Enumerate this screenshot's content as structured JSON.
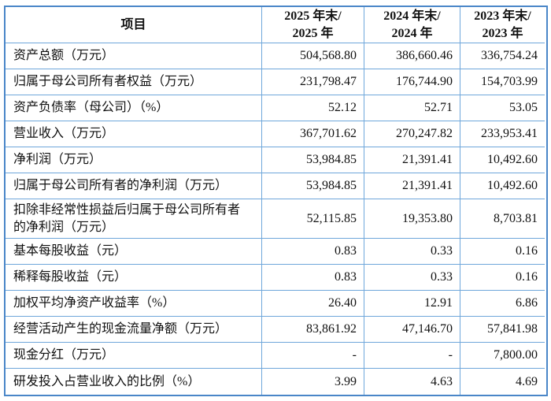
{
  "table": {
    "title_semantic": "financial-summary-table",
    "border_color_outer": "#4a86c8",
    "border_color_inner": "#6fa7db",
    "header": {
      "item_label": "项目",
      "col_2025": "2025 年末/\n2025 年",
      "col_2024": "2024 年末/\n2024 年",
      "col_2023": "2023 年末/\n2023 年"
    },
    "rows": [
      {
        "label": "资产总额（万元）",
        "y2025": "504,568.80",
        "y2024": "386,660.46",
        "y2023": "336,754.24"
      },
      {
        "label": "归属于母公司所有者权益（万元）",
        "y2025": "231,798.47",
        "y2024": "176,744.90",
        "y2023": "154,703.99"
      },
      {
        "label": "资产负债率（母公司）（%）",
        "y2025": "52.12",
        "y2024": "52.71",
        "y2023": "53.05"
      },
      {
        "label": "营业收入（万元）",
        "y2025": "367,701.62",
        "y2024": "270,247.82",
        "y2023": "233,953.41"
      },
      {
        "label": "净利润（万元）",
        "y2025": "53,984.85",
        "y2024": "21,391.41",
        "y2023": "10,492.60"
      },
      {
        "label": "归属于母公司所有者的净利润（万元）",
        "y2025": "53,984.85",
        "y2024": "21,391.41",
        "y2023": "10,492.60"
      },
      {
        "label": "扣除非经常性损益后归属于母公司所有者\n的净利润（万元）",
        "y2025": "52,115.85",
        "y2024": "19,353.80",
        "y2023": "8,703.81"
      },
      {
        "label": "基本每股收益（元）",
        "y2025": "0.83",
        "y2024": "0.33",
        "y2023": "0.16"
      },
      {
        "label": "稀释每股收益（元）",
        "y2025": "0.83",
        "y2024": "0.33",
        "y2023": "0.16"
      },
      {
        "label": "加权平均净资产收益率（%）",
        "y2025": "26.40",
        "y2024": "12.91",
        "y2023": "6.86"
      },
      {
        "label": "经营活动产生的现金流量净额（万元）",
        "y2025": "83,861.92",
        "y2024": "47,146.70",
        "y2023": "57,841.98"
      },
      {
        "label": "现金分红（万元）",
        "y2025": "-",
        "y2024": "-",
        "y2023": "7,800.00"
      },
      {
        "label": "研发投入占营业收入的比例（%）",
        "y2025": "3.99",
        "y2024": "4.63",
        "y2023": "4.69"
      }
    ]
  }
}
